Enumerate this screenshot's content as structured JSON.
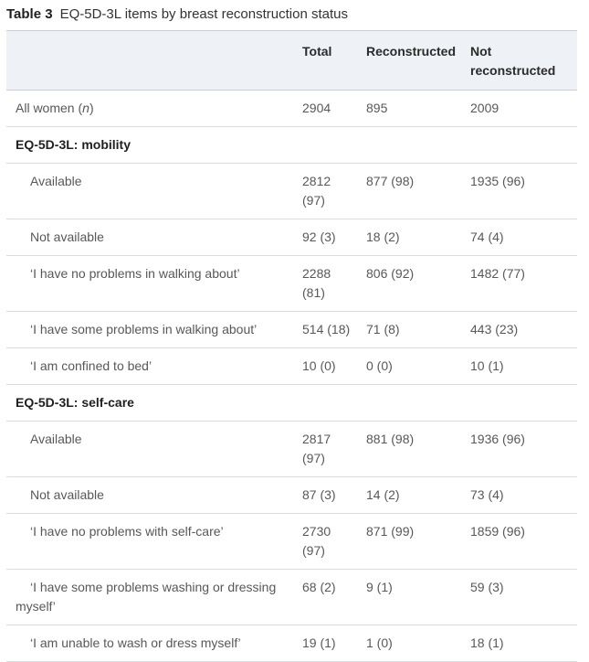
{
  "caption": {
    "label": "Table 3",
    "text": "EQ-5D-3L items by breast reconstruction status"
  },
  "colors": {
    "header_bg": "#eef1f6",
    "header_border": "#c9cfda",
    "row_border": "#d9dce2",
    "section_text": "#1f1f1f",
    "body_text": "#585858"
  },
  "table": {
    "columns": [
      "",
      "Total",
      "Reconstructed",
      "Not reconstructed"
    ],
    "rows": [
      {
        "section": false,
        "indent": false,
        "parts": [
          [
            "All women (",
            false
          ],
          [
            "n",
            true
          ],
          [
            ")",
            false
          ]
        ],
        "values": [
          "2904",
          "895",
          "2009"
        ]
      },
      {
        "section": true,
        "label": "EQ-5D-3L: mobility"
      },
      {
        "section": false,
        "indent": true,
        "label": "Available",
        "values": [
          "2812 (97)",
          "877 (98)",
          "1935 (96)"
        ]
      },
      {
        "section": false,
        "indent": true,
        "label": "Not available",
        "values": [
          "92 (3)",
          "18 (2)",
          "74 (4)"
        ]
      },
      {
        "section": false,
        "indent": true,
        "label": "‘I have no problems in walking about’",
        "values": [
          "2288 (81)",
          "806 (92)",
          "1482 (77)"
        ]
      },
      {
        "section": false,
        "indent": true,
        "label": "‘I have some problems in walking about’",
        "values": [
          "514 (18)",
          "71 (8)",
          "443 (23)"
        ]
      },
      {
        "section": false,
        "indent": true,
        "label": "‘I am confined to bed’",
        "values": [
          "10 (0)",
          "0 (0)",
          "10 (1)"
        ]
      },
      {
        "section": true,
        "label": "EQ-5D-3L: self-care"
      },
      {
        "section": false,
        "indent": true,
        "label": "Available",
        "values": [
          "2817 (97)",
          "881 (98)",
          "1936 (96)"
        ]
      },
      {
        "section": false,
        "indent": true,
        "label": "Not available",
        "values": [
          "87 (3)",
          "14 (2)",
          "73 (4)"
        ]
      },
      {
        "section": false,
        "indent": true,
        "label": "‘I have no problems with self-care’",
        "values": [
          "2730 (97)",
          "871 (99)",
          "1859 (96)"
        ]
      },
      {
        "section": false,
        "indent": true,
        "label": "‘I have some problems washing or dressing myself’",
        "values": [
          "68 (2)",
          "9 (1)",
          "59 (3)"
        ]
      },
      {
        "section": false,
        "indent": true,
        "label": "‘I am unable to wash or dress myself’",
        "values": [
          "19 (1)",
          "1 (0)",
          "18 (1)"
        ]
      }
    ]
  }
}
